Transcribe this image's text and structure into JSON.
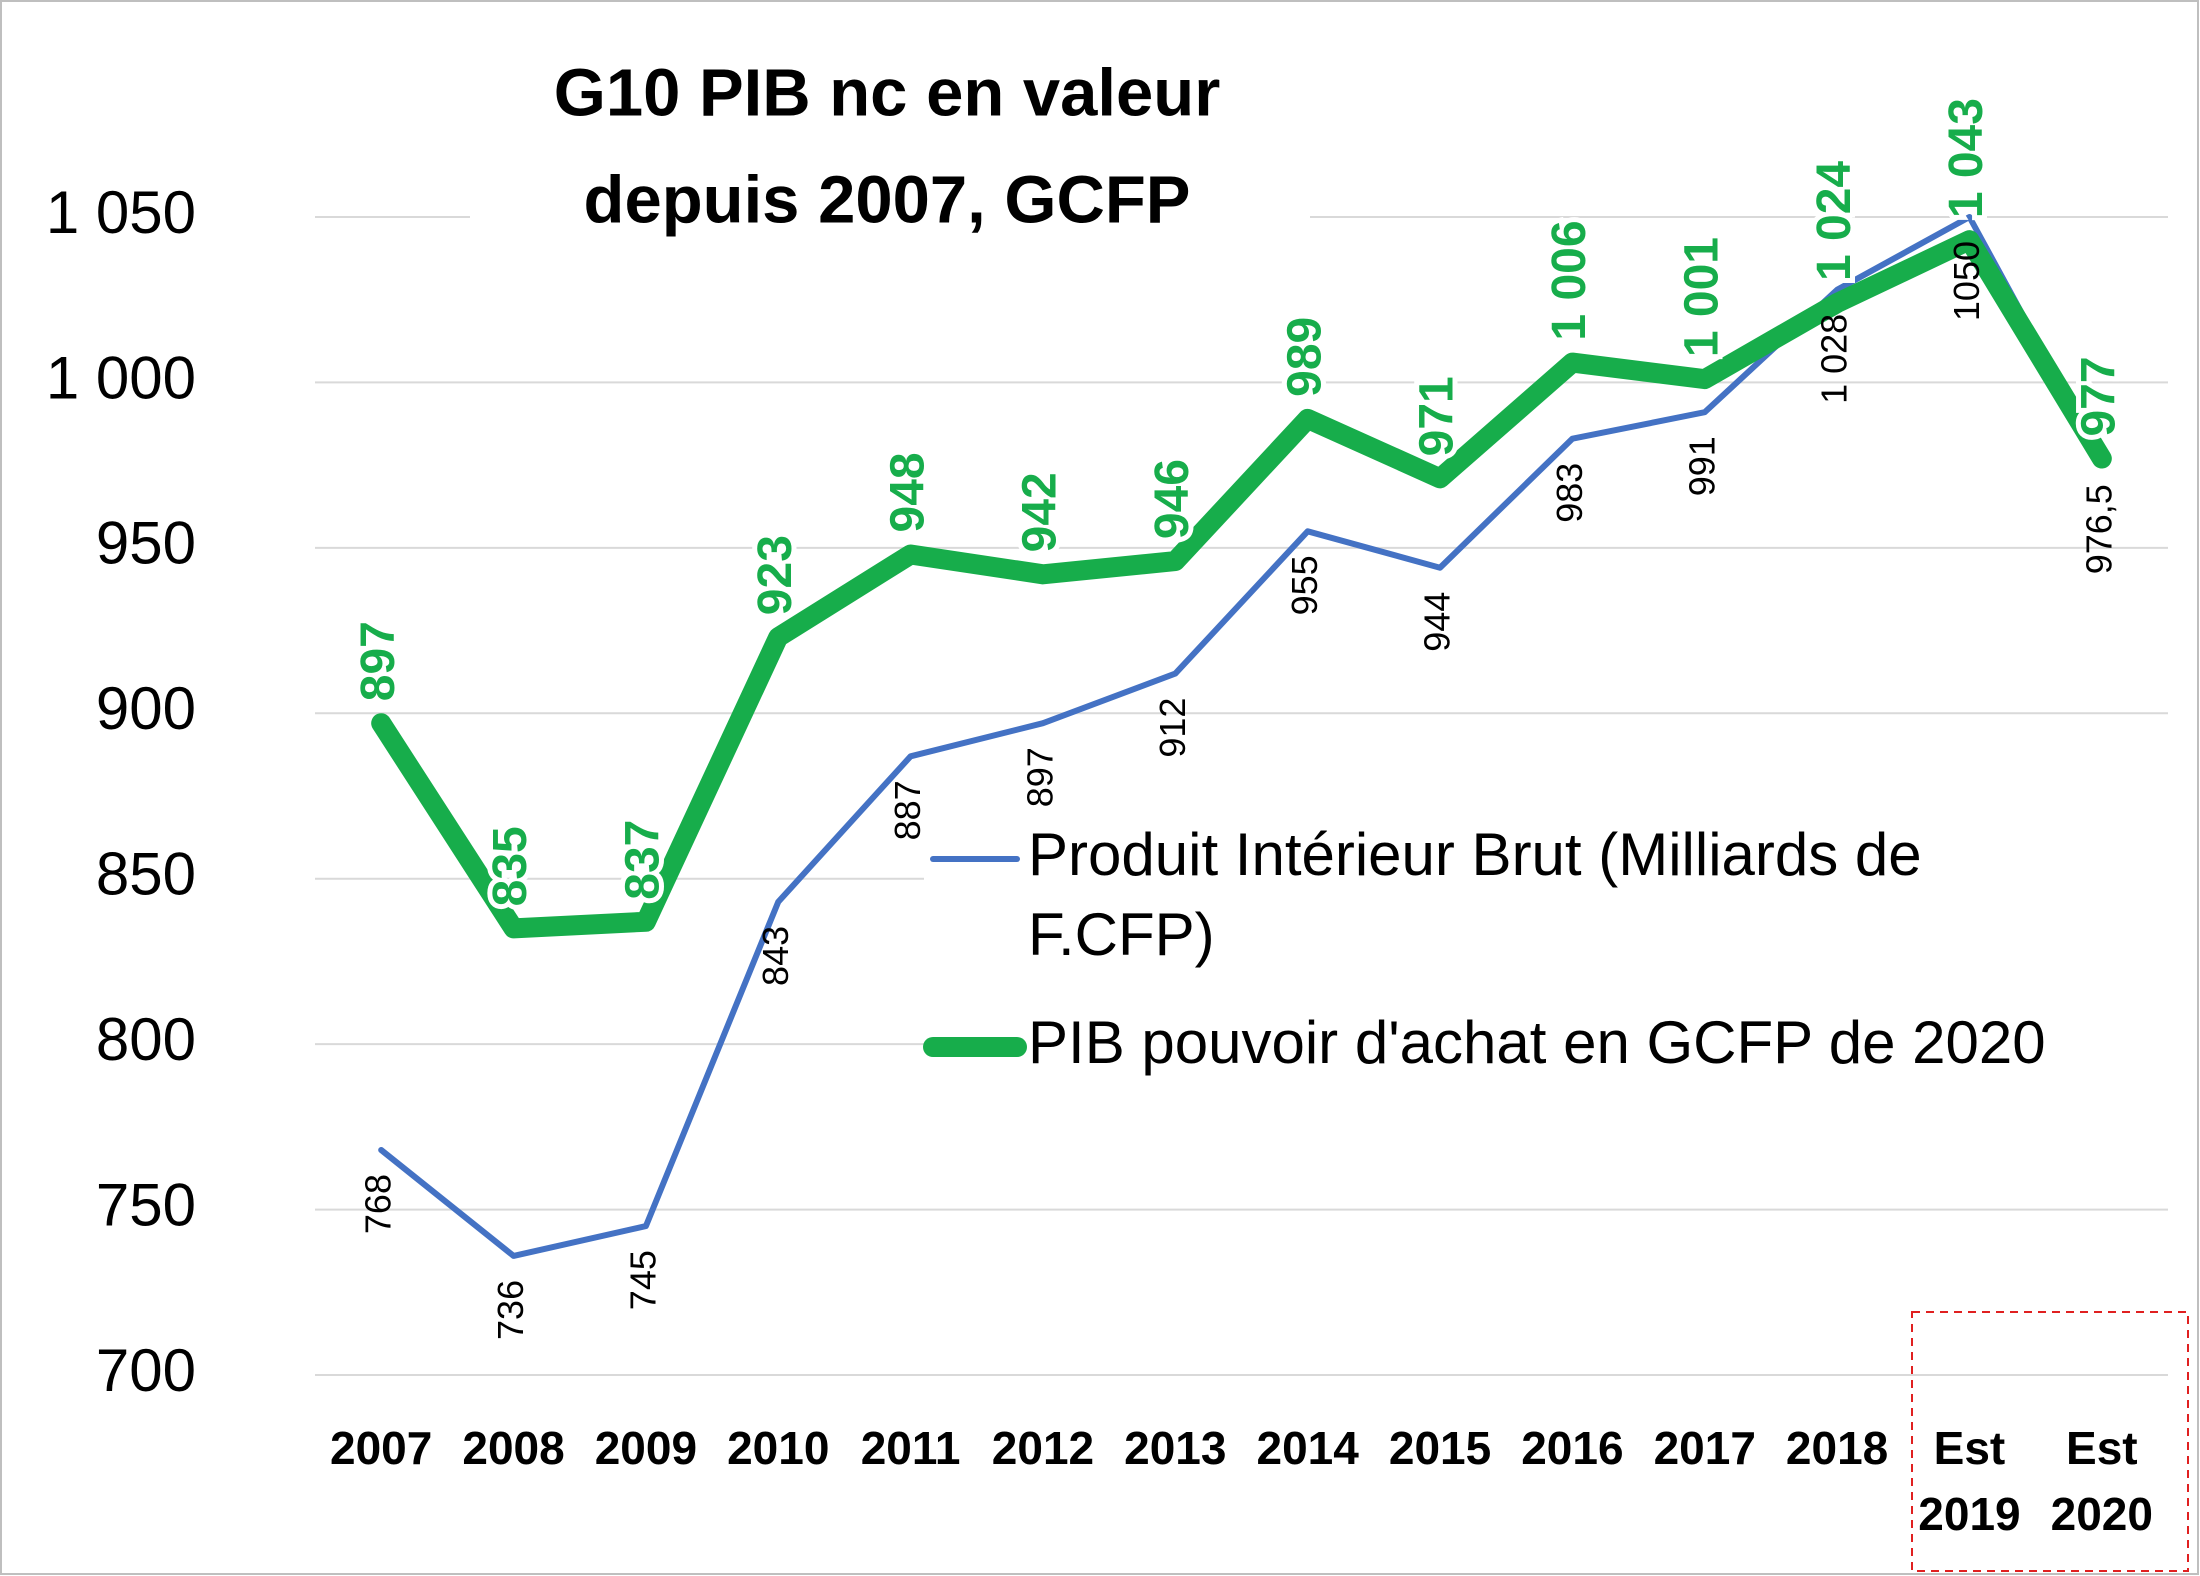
{
  "chart_data": {
    "type": "line",
    "title": [
      "G10  PIB nc en valeur",
      "depuis 2007, GCFP"
    ],
    "categories": [
      "2007",
      "2008",
      "2009",
      "2010",
      "2011",
      "2012",
      "2013",
      "2014",
      "2015",
      "2016",
      "2017",
      "2018",
      "Est 2019",
      "Est 2020"
    ],
    "series": [
      {
        "name": "Produit Intérieur Brut (Milliards de F.CFP)",
        "color": "#4472c4",
        "values": [
          768,
          736,
          745,
          843,
          887,
          897,
          912,
          955,
          944,
          983,
          991,
          1028,
          1050,
          976.5
        ],
        "value_labels": [
          "768",
          "736",
          "745",
          "843",
          "887",
          "897",
          "912",
          "955",
          "944",
          "983",
          "991",
          "1 028",
          "1050",
          "976,5"
        ]
      },
      {
        "name": "PIB pouvoir d'achat en GCFP de 2020",
        "color": "#17ad4b",
        "values": [
          897,
          835,
          837,
          923,
          948,
          942,
          946,
          989,
          971,
          1006,
          1001,
          1024,
          1043,
          977
        ],
        "value_labels": [
          "897",
          "835",
          "837",
          "923",
          "948",
          "942",
          "946",
          "989",
          "971",
          "1 006",
          "1 001",
          "1 024",
          "1 043",
          "977"
        ]
      }
    ],
    "ylim": [
      700,
      1050
    ],
    "yticks": [
      700,
      750,
      800,
      850,
      900,
      950,
      {
        "value": 1000,
        "label": "1 000"
      },
      {
        "value": 1050,
        "label": "1 050"
      }
    ],
    "grid": true
  }
}
